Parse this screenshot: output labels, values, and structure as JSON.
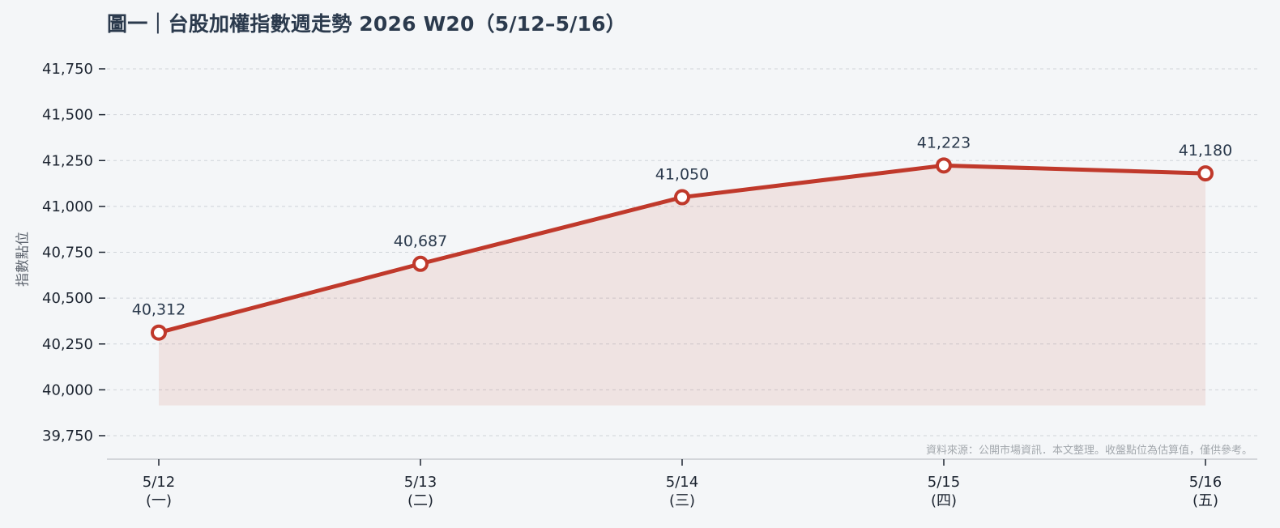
{
  "chart_data": {
    "type": "line",
    "title": "圖一｜台股加權指數週走勢  2026 W20（5/12–5/16）",
    "ylabel": "指數點位",
    "xlabel": "",
    "categories": [
      "5/12\n(一)",
      "5/13\n(二)",
      "5/14\n(三)",
      "5/15\n(四)",
      "5/16\n(五)"
    ],
    "values": [
      40312,
      40687,
      41050,
      41223,
      41180
    ],
    "data_labels": [
      "40,312",
      "40,687",
      "41,050",
      "41,223",
      "41,180"
    ],
    "ylim": [
      39625,
      41875
    ],
    "yticks": [
      39750,
      40000,
      40250,
      40500,
      40750,
      41000,
      41250,
      41500,
      41750
    ],
    "ytick_labels": [
      "39,750",
      "40,000",
      "40,250",
      "40,500",
      "40,750",
      "41,000",
      "41,250",
      "41,500",
      "41,750"
    ],
    "area_baseline": 39915,
    "grid": true,
    "legend": "none",
    "source_note": "資料來源：公開市場資訊．本文整理。收盤點位為估算值，僅供參考。",
    "colors": {
      "line": "#c0392b",
      "area_fill": "#c0392b",
      "marker_fill": "#ffffff",
      "grid": "#cfd4d9",
      "axis": "#c8ccd0",
      "tick_text": "#1c2430",
      "label_text": "#2b3a4d"
    }
  }
}
